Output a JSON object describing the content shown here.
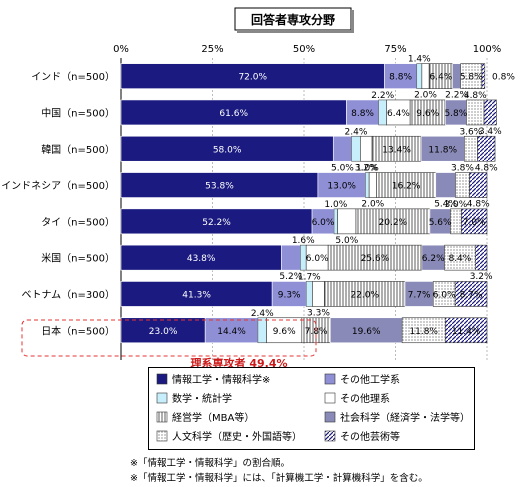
{
  "chart_data": {
    "type": "bar",
    "stacked": true,
    "orientation": "horizontal",
    "title": "回答者専攻分野",
    "x_ticks": [
      "0%",
      "25%",
      "50%",
      "75%",
      "100%"
    ],
    "xlim": [
      0,
      100
    ],
    "categories": [
      "インド（n=500）",
      "中国（n=500）",
      "韓国（n=500）",
      "インドネシア（n=500）",
      "タイ（n=500）",
      "米国（n=500）",
      "ベトナム（n=300）",
      "日本（n=500）"
    ],
    "series": [
      {
        "name": "情報工学・情報科学※",
        "values": [
          72.0,
          61.6,
          58.0,
          53.8,
          52.2,
          43.8,
          41.3,
          23.0
        ]
      },
      {
        "name": "その他工学系",
        "values": [
          8.8,
          8.8,
          5.0,
          13.0,
          6.0,
          5.2,
          9.3,
          14.4
        ]
      },
      {
        "name": "数学・統計学",
        "values": [
          1.4,
          2.2,
          2.4,
          1.0,
          1.0,
          1.6,
          1.7,
          2.4
        ]
      },
      {
        "name": "その他理系",
        "values": [
          2.0,
          6.4,
          3.2,
          2.0,
          5.0,
          6.0,
          3.3,
          9.6
        ]
      },
      {
        "name": "経営学（MBA等）",
        "values": [
          6.4,
          9.6,
          13.4,
          16.2,
          20.2,
          25.6,
          22.0,
          7.8
        ]
      },
      {
        "name": "社会科学（経済学・法学等）",
        "values": [
          2.2,
          5.8,
          11.8,
          5.4,
          5.6,
          6.2,
          7.7,
          19.6
        ]
      },
      {
        "name": "人文科学（歴史・外国語等）",
        "values": [
          5.8,
          4.8,
          3.6,
          3.8,
          3.0,
          8.4,
          6.0,
          11.8
        ]
      },
      {
        "name": "その他芸術等",
        "values": [
          0.8,
          3.4,
          4.8,
          4.8,
          7.0,
          3.2,
          8.7,
          11.4
        ]
      }
    ],
    "annotation": "理系専攻者 49.4%",
    "legend_placement": "bottom",
    "grid": true
  },
  "colors": {
    "jouhou": "#1a1a80",
    "sonota_kougaku": "#8f8fd6",
    "suugaku": "#c6eefb",
    "sonota_rikei": "#ffffff",
    "keiei": "#ffffff",
    "shakai": "#8a8ab8",
    "jinbun": "#ffffff",
    "geijutsu": "#ffffff",
    "annotation": "#cc1a1a"
  },
  "notes": [
    "※「情報工学・情報科学」の割合順。",
    "※「情報工学・情報科学」には、「計算機工学・計算機科学」を含む。"
  ]
}
